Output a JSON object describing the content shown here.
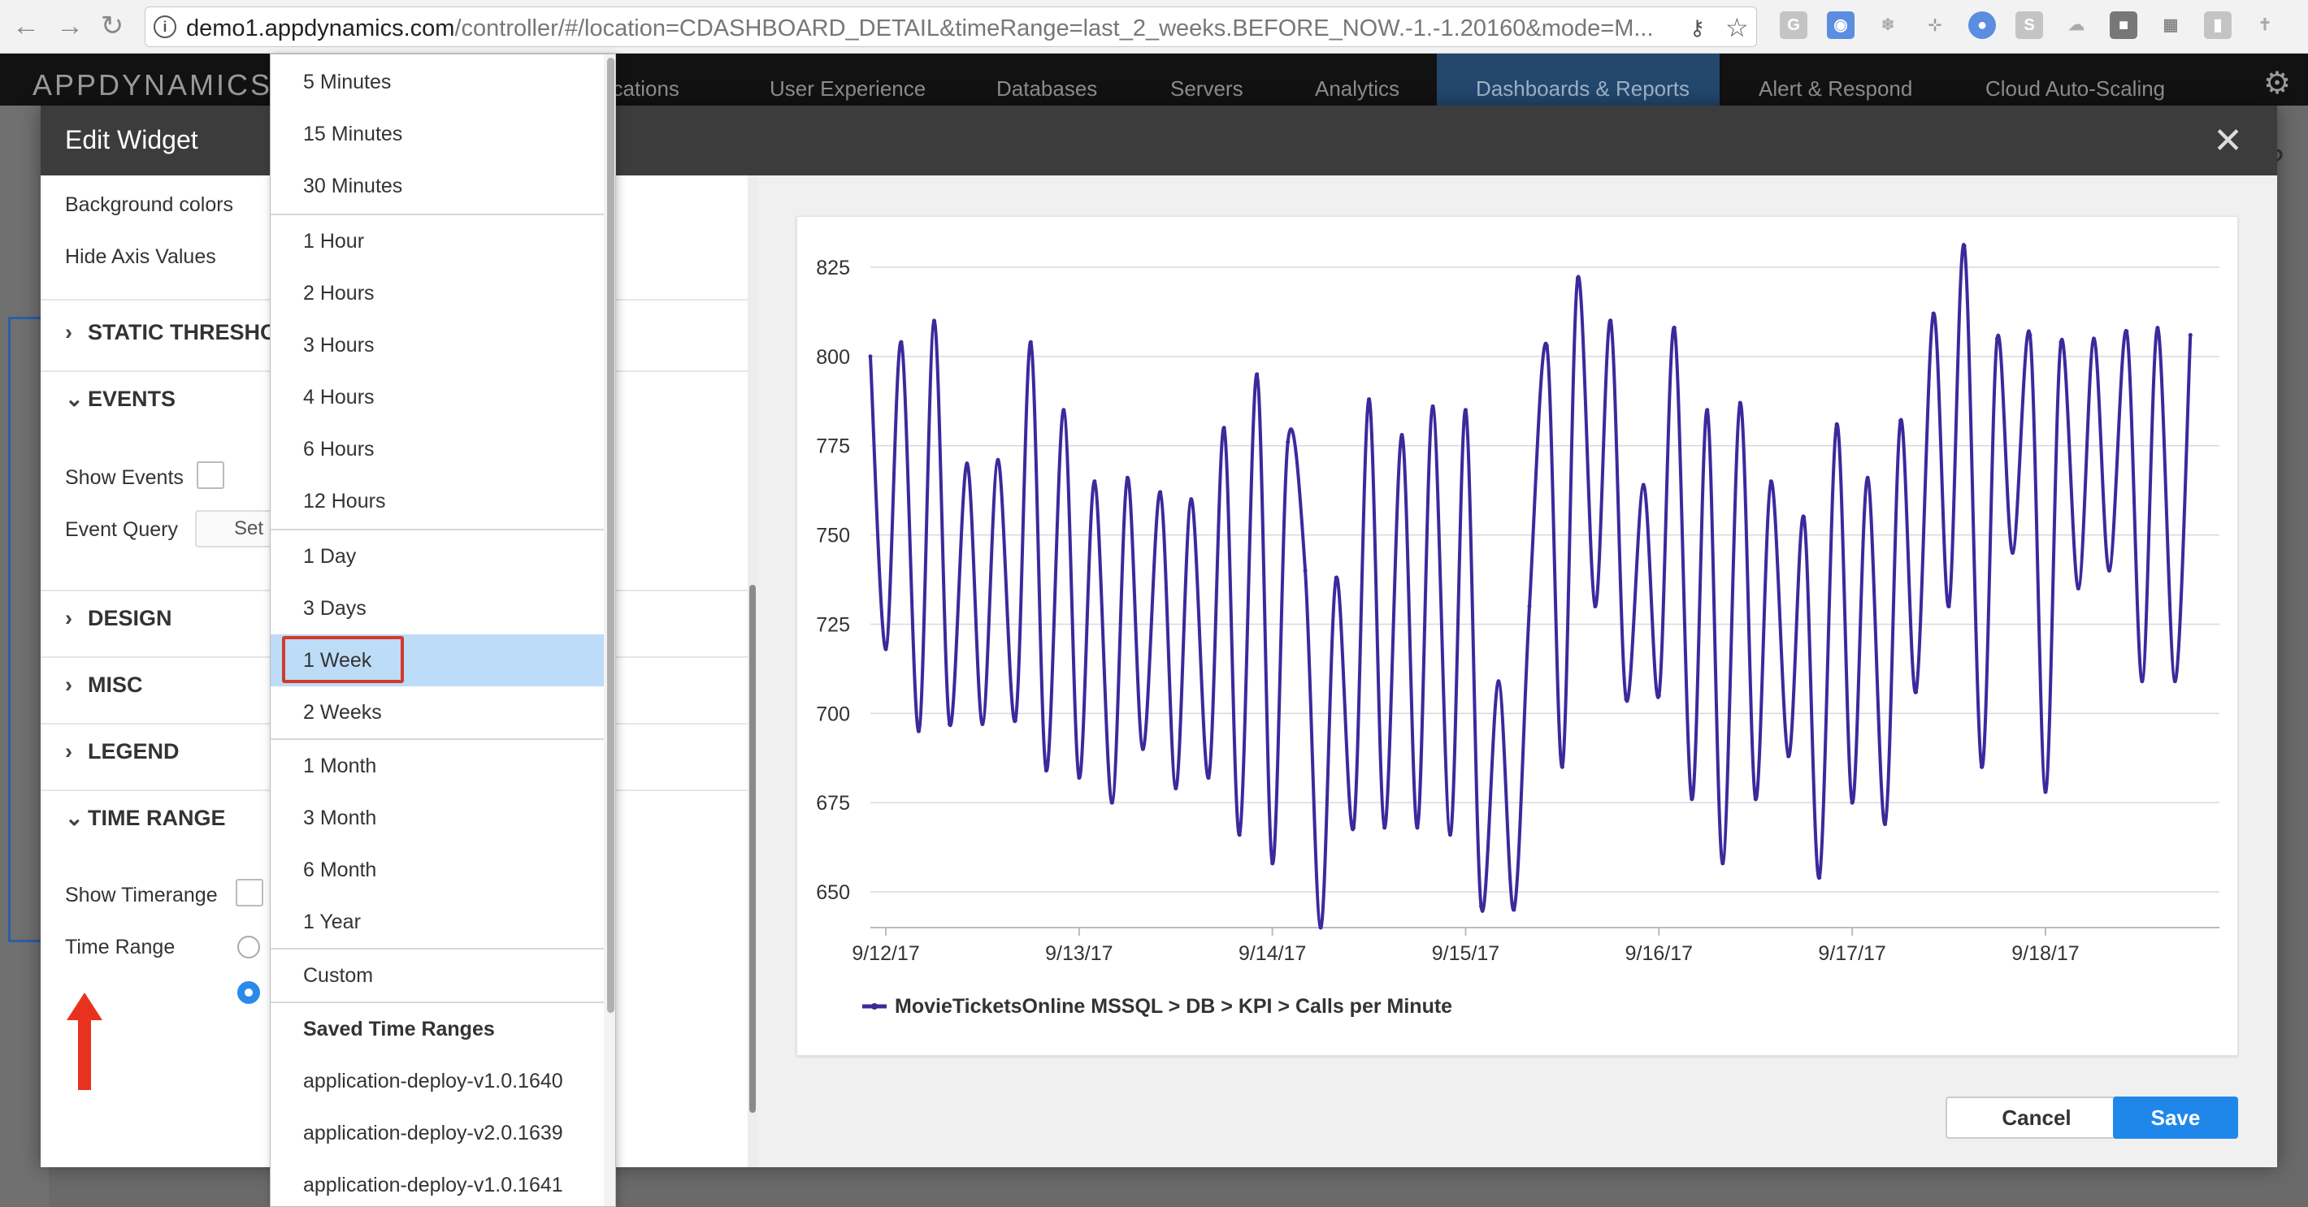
{
  "browser": {
    "url_domain": "demo1.appdynamics.com",
    "url_path": "/controller/#/location=CDASHBOARD_DETAIL&timeRange=last_2_weeks.BEFORE_NOW.-1.-1.20160&mode=M..."
  },
  "app": {
    "logo": "APPDYNAMICS",
    "nav": [
      {
        "label": "lications"
      },
      {
        "label": "User Experience"
      },
      {
        "label": "Databases"
      },
      {
        "label": "Servers"
      },
      {
        "label": "Analytics"
      },
      {
        "label": "Dashboards & Reports",
        "active": true
      },
      {
        "label": "Alert & Respond"
      },
      {
        "label": "Cloud Auto-Scaling"
      }
    ]
  },
  "modal": {
    "title": "Edit Widget",
    "buttons": {
      "cancel": "Cancel",
      "save": "Save"
    }
  },
  "left_pane": {
    "background_colors": "Background colors",
    "hide_axis_values": "Hide Axis Values",
    "sections": {
      "static_thresholds": "STATIC THRESHO",
      "events": "EVENTS",
      "design": "DESIGN",
      "misc": "MISC",
      "legend": "LEGEND",
      "time_range": "TIME RANGE"
    },
    "show_events": "Show Events",
    "event_query": "Event Query",
    "event_query_button": "Set",
    "show_timerange": "Show Timerange",
    "time_range_label": "Time Range"
  },
  "dropdown": {
    "items": [
      "5 Minutes",
      "15 Minutes",
      "30 Minutes",
      "1 Hour",
      "2 Hours",
      "3 Hours",
      "4 Hours",
      "6 Hours",
      "12 Hours",
      "1 Day",
      "3 Days",
      "1 Week",
      "2 Weeks",
      "1 Month",
      "3 Month",
      "6 Month",
      "1 Year",
      "Custom"
    ],
    "selected": "1 Week",
    "saved_header": "Saved Time Ranges",
    "saved": [
      "application-deploy-v1.0.1640",
      "application-deploy-v2.0.1639",
      "application-deploy-v1.0.1641"
    ]
  },
  "chart_data": {
    "type": "line",
    "title": "",
    "xlabel": "",
    "ylabel": "",
    "ylim": [
      640,
      830
    ],
    "yticks": [
      650,
      675,
      700,
      725,
      750,
      775,
      800,
      825
    ],
    "xticks": [
      "9/12/17",
      "9/13/17",
      "9/14/17",
      "9/15/17",
      "9/16/17",
      "9/17/17",
      "9/18/17"
    ],
    "x_unit": "days since 9/12/17 00:00",
    "grid": true,
    "legend": "bottom-left",
    "series": [
      {
        "name": "MovieTicketsOnline MSSQL > DB > KPI > Calls per Minute",
        "color": "#3a2a9c",
        "x": [
          -0.08,
          0.0,
          0.08,
          0.17,
          0.25,
          0.33,
          0.42,
          0.5,
          0.58,
          0.67,
          0.75,
          0.83,
          0.92,
          1.0,
          1.08,
          1.17,
          1.25,
          1.33,
          1.42,
          1.5,
          1.58,
          1.67,
          1.75,
          1.83,
          1.92,
          2.0,
          2.08,
          2.17,
          2.25,
          2.33,
          2.42,
          2.5,
          2.58,
          2.67,
          2.75,
          2.83,
          2.92,
          3.0,
          3.08,
          3.17,
          3.25,
          3.33,
          3.42,
          3.5,
          3.58,
          3.67,
          3.75,
          3.83,
          3.92,
          4.0,
          4.08,
          4.17,
          4.25,
          4.33,
          4.42,
          4.5,
          4.58,
          4.67,
          4.75,
          4.83,
          4.92,
          5.0,
          5.08,
          5.17,
          5.25,
          5.33,
          5.42,
          5.5,
          5.58,
          5.67,
          5.75,
          5.83,
          5.92,
          6.0,
          6.08,
          6.17,
          6.25,
          6.33,
          6.42,
          6.5,
          6.58,
          6.67,
          6.75
        ],
        "values": [
          800,
          718,
          804,
          695,
          810,
          697,
          770,
          697,
          771,
          698,
          804,
          684,
          785,
          682,
          765,
          675,
          766,
          690,
          762,
          679,
          760,
          682,
          780,
          666,
          795,
          658,
          776,
          740,
          640,
          738,
          668,
          788,
          668,
          778,
          668,
          786,
          666,
          785,
          646,
          709,
          645,
          730,
          803,
          685,
          822,
          730,
          810,
          704,
          764,
          705,
          808,
          676,
          785,
          658,
          787,
          676,
          765,
          688,
          755,
          654,
          781,
          675,
          766,
          669,
          782,
          706,
          812,
          730,
          831,
          685,
          805,
          745,
          806,
          678,
          804,
          735,
          805,
          740,
          807,
          709,
          808,
          709,
          806
        ]
      }
    ]
  }
}
